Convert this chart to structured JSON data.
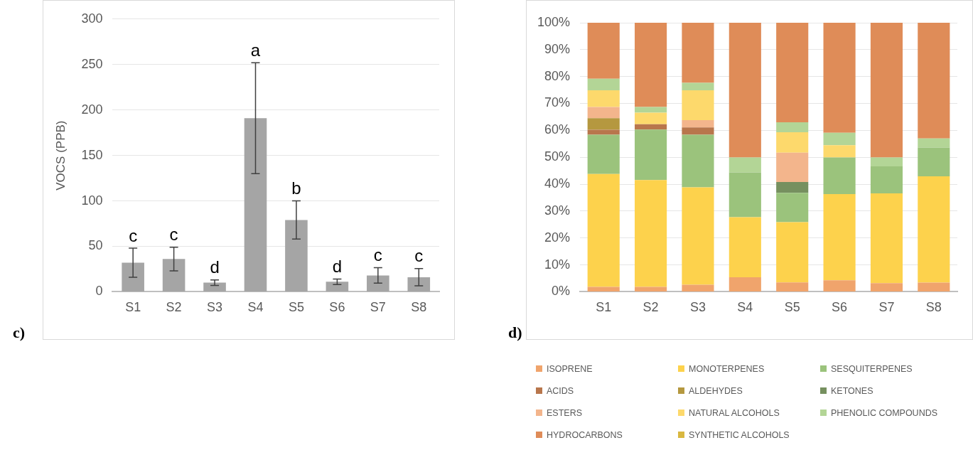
{
  "chart_data": [
    {
      "type": "bar",
      "ylabel": "VOCS (PPB)",
      "categories": [
        "S1",
        "S2",
        "S3",
        "S4",
        "S5",
        "S6",
        "S7",
        "S8"
      ],
      "values": [
        32,
        36,
        10,
        191,
        79,
        11,
        18,
        16
      ],
      "errors": [
        16,
        13,
        3,
        61,
        21,
        3,
        8.5,
        9.5
      ],
      "color": "#a5a5a5",
      "ylim": [
        0,
        300
      ],
      "yticks": [
        0,
        50,
        100,
        150,
        200,
        250,
        300
      ],
      "grid": "y",
      "legend": false,
      "annotations": [
        {
          "text": "c",
          "x": "S1",
          "y": 48
        },
        {
          "text": "c",
          "x": "S2",
          "y": 49
        },
        {
          "text": "d",
          "x": "S3",
          "y": 13
        },
        {
          "text": "a",
          "x": "S4",
          "y": 252
        },
        {
          "text": "b",
          "x": "S5",
          "y": 100
        },
        {
          "text": "d",
          "x": "S6",
          "y": 14
        },
        {
          "text": "c",
          "x": "S7",
          "y": 26.5
        },
        {
          "text": "c",
          "x": "S8",
          "y": 25.5
        },
        "c)"
      ]
    },
    {
      "type": "bar",
      "stacked": true,
      "categories": [
        "S1",
        "S2",
        "S3",
        "S4",
        "S5",
        "S6",
        "S7",
        "S8"
      ],
      "ylim": [
        0,
        100
      ],
      "yticks": [
        {
          "value": 0,
          "label": "0%"
        },
        {
          "value": 10,
          "label": "10%"
        },
        {
          "value": 20,
          "label": "20%"
        },
        {
          "value": 30,
          "label": "30%"
        },
        {
          "value": 40,
          "label": "40%"
        },
        {
          "value": 50,
          "label": "50%"
        },
        {
          "value": 60,
          "label": "60%"
        },
        {
          "value": 70,
          "label": "70%"
        },
        {
          "value": 80,
          "label": "80%"
        },
        {
          "value": 90,
          "label": "90%"
        },
        {
          "value": 100,
          "label": "100%"
        }
      ],
      "grid": "y",
      "legend": "bottom",
      "annotations": [
        "d)"
      ],
      "series": [
        {
          "name": "ISOPRENE",
          "color": "#f0a46c",
          "values": [
            1.8,
            1.8,
            2.6,
            5.4,
            3.5,
            4.3,
            3.2,
            3.4
          ]
        },
        {
          "name": "MONOTERPENES",
          "color": "#fdd24c",
          "values": [
            42.0,
            39.7,
            36.2,
            22.3,
            22.4,
            32.0,
            33.4,
            39.5
          ]
        },
        {
          "name": "SESQUITERPENES",
          "color": "#9bc37c",
          "values": [
            14.6,
            18.8,
            19.6,
            16.7,
            10.9,
            13.6,
            10.0,
            10.7
          ]
        },
        {
          "name": "ACIDS",
          "color": "#b8764c",
          "values": [
            1.8,
            2.0,
            2.7,
            0,
            0,
            0,
            0,
            0
          ]
        },
        {
          "name": "ALDEHYDES",
          "color": "#b5983f",
          "values": [
            4.3,
            0,
            0,
            0,
            0,
            0,
            0,
            0
          ]
        },
        {
          "name": "KETONES",
          "color": "#76905f",
          "values": [
            0,
            0,
            0,
            0,
            4.0,
            0,
            0,
            0
          ]
        },
        {
          "name": "ESTERS",
          "color": "#f3b58c",
          "values": [
            4.2,
            0,
            2.7,
            0,
            10.9,
            0,
            0,
            0
          ]
        },
        {
          "name": "NATURAL ALCOHOLS",
          "color": "#fdd96c",
          "values": [
            6.2,
            4.3,
            11.1,
            0,
            7.6,
            4.6,
            0,
            0
          ]
        },
        {
          "name": "PHENOLIC COMPOUNDS",
          "color": "#b3d596",
          "values": [
            4.3,
            2.1,
            2.8,
            5.5,
            3.7,
            4.6,
            3.3,
            3.4
          ]
        },
        {
          "name": "HYDROCARBONS",
          "color": "#df8c58",
          "values": [
            20.8,
            31.3,
            22.3,
            50.1,
            37.0,
            40.9,
            50.1,
            43.0
          ]
        },
        {
          "name": "SYNTHETIC ALCOHOLS",
          "color": "#d9b840",
          "values": [
            0,
            0,
            0,
            0,
            0,
            0,
            0,
            0
          ]
        }
      ]
    }
  ]
}
